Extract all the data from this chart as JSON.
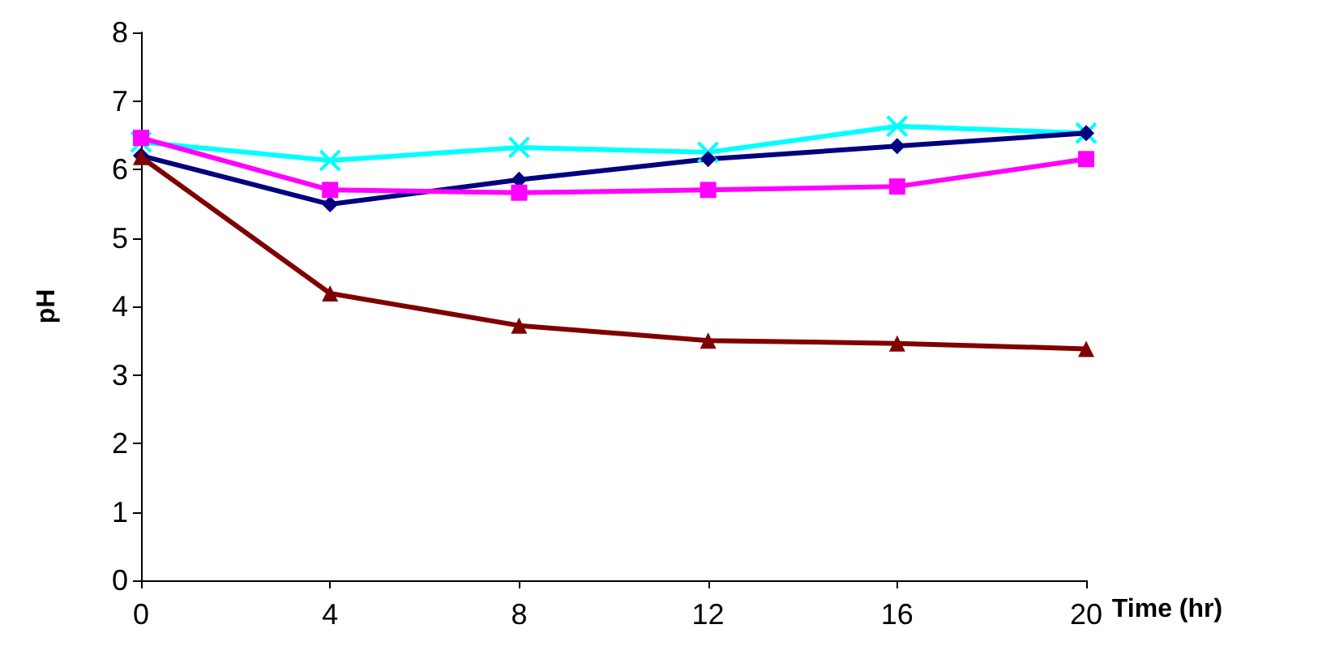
{
  "chart_data": {
    "type": "line",
    "xlabel": "Time (hr)",
    "ylabel": "pH",
    "x": [
      0,
      4,
      8,
      12,
      16,
      20
    ],
    "xlim": [
      0,
      20
    ],
    "xticks": [
      0,
      4,
      8,
      12,
      16,
      20
    ],
    "ylim": [
      0,
      8
    ],
    "yticks": [
      0,
      1,
      2,
      3,
      4,
      5,
      6,
      7,
      8
    ],
    "grid": false,
    "series": [
      {
        "color": "#00ffff",
        "marker": "cross",
        "values": [
          6.4,
          6.13,
          6.32,
          6.25,
          6.63,
          6.53
        ]
      },
      {
        "color": "#000080",
        "marker": "diamond",
        "values": [
          6.2,
          5.49,
          5.85,
          6.15,
          6.34,
          6.53
        ]
      },
      {
        "color": "#ff00ff",
        "marker": "square",
        "values": [
          6.46,
          5.7,
          5.66,
          5.7,
          5.75,
          6.15
        ]
      },
      {
        "color": "#800000",
        "marker": "triangle",
        "values": [
          6.18,
          4.19,
          3.72,
          3.5,
          3.46,
          3.38
        ]
      }
    ]
  }
}
